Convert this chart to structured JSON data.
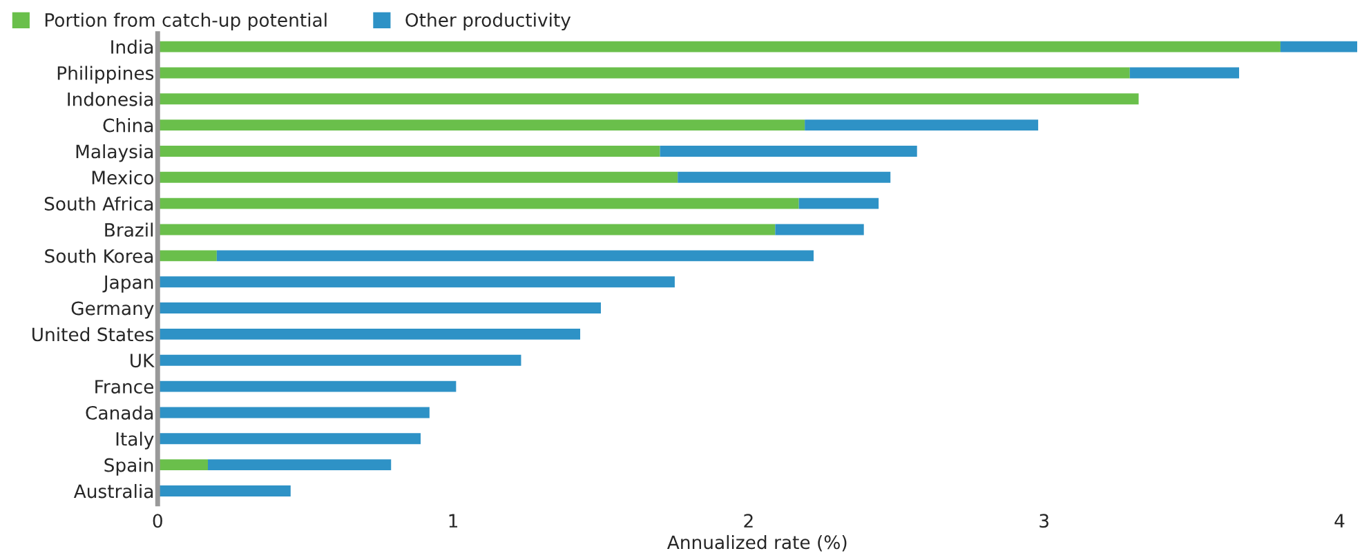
{
  "chart_data": {
    "type": "bar",
    "orientation": "horizontal",
    "stacked": true,
    "xlabel": "Annualized rate (%)",
    "categories": [
      "India",
      "Philippines",
      "Indonesia",
      "China",
      "Malaysia",
      "Mexico",
      "South Africa",
      "Brazil",
      "South Korea",
      "Japan",
      "Germany",
      "United States",
      "UK",
      "France",
      "Canada",
      "Italy",
      "Spain",
      "Australia"
    ],
    "series": [
      {
        "name": "Portion from catch-up potential",
        "color": "#6abf4b",
        "values": [
          3.8,
          3.29,
          3.32,
          2.19,
          1.7,
          1.76,
          2.17,
          2.09,
          0.2,
          null,
          null,
          null,
          null,
          null,
          null,
          null,
          0.17,
          null
        ]
      },
      {
        "name": "Other productivity",
        "color": "#2e92c6",
        "values": [
          0.26,
          0.37,
          null,
          0.79,
          0.87,
          0.72,
          0.27,
          0.3,
          2.02,
          1.75,
          1.5,
          1.43,
          1.23,
          1.01,
          0.92,
          0.89,
          0.62,
          0.45
        ]
      }
    ],
    "xlim": [
      0,
      4.06
    ],
    "xticks": [
      0,
      1,
      2,
      3,
      4
    ],
    "grid": false,
    "legend": "top left"
  }
}
